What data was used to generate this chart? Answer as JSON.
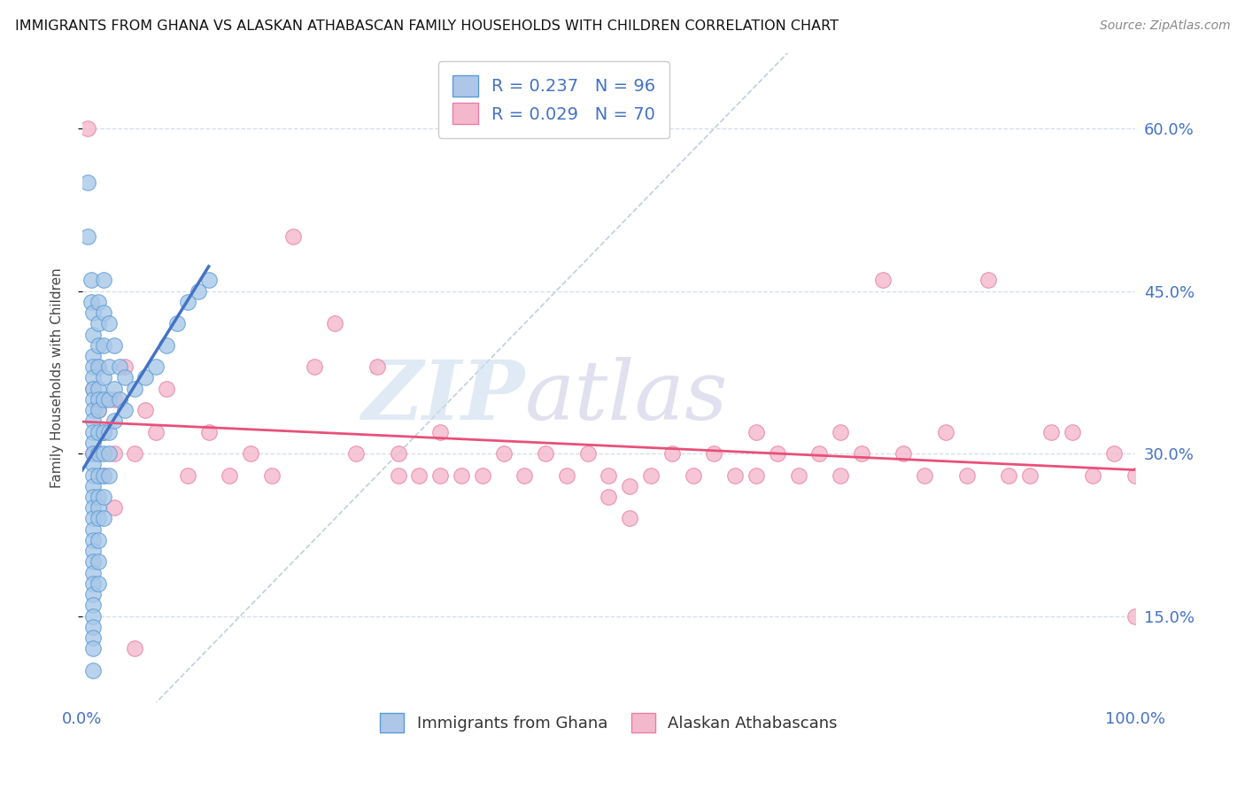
{
  "title": "IMMIGRANTS FROM GHANA VS ALASKAN ATHABASCAN FAMILY HOUSEHOLDS WITH CHILDREN CORRELATION CHART",
  "source": "Source: ZipAtlas.com",
  "ylabel": "Family Households with Children",
  "yticks_labels": [
    "15.0%",
    "30.0%",
    "45.0%",
    "60.0%"
  ],
  "ytick_vals": [
    0.15,
    0.3,
    0.45,
    0.6
  ],
  "xlim": [
    0.0,
    1.0
  ],
  "ylim": [
    0.07,
    0.67
  ],
  "ghana_color": "#a8c8e8",
  "ghana_edge": "#5b9bd5",
  "athabascan_color": "#f4b8cc",
  "athabascan_edge": "#e87fa0",
  "trend_ghana_color": "#4472c4",
  "trend_athabascan_color": "#e8507a",
  "diagonal_color": "#b0c4d8",
  "background_color": "#ffffff",
  "watermark_zip_color": "#dce8f4",
  "watermark_atlas_color": "#d4d0e8",
  "ghana_points": [
    [
      0.005,
      0.55
    ],
    [
      0.005,
      0.5
    ],
    [
      0.008,
      0.46
    ],
    [
      0.008,
      0.44
    ],
    [
      0.01,
      0.43
    ],
    [
      0.01,
      0.41
    ],
    [
      0.01,
      0.39
    ],
    [
      0.01,
      0.38
    ],
    [
      0.01,
      0.37
    ],
    [
      0.01,
      0.36
    ],
    [
      0.01,
      0.35
    ],
    [
      0.01,
      0.34
    ],
    [
      0.01,
      0.33
    ],
    [
      0.01,
      0.32
    ],
    [
      0.01,
      0.31
    ],
    [
      0.01,
      0.3
    ],
    [
      0.01,
      0.29
    ],
    [
      0.01,
      0.28
    ],
    [
      0.01,
      0.27
    ],
    [
      0.01,
      0.26
    ],
    [
      0.01,
      0.25
    ],
    [
      0.01,
      0.24
    ],
    [
      0.01,
      0.23
    ],
    [
      0.01,
      0.22
    ],
    [
      0.01,
      0.21
    ],
    [
      0.01,
      0.2
    ],
    [
      0.01,
      0.19
    ],
    [
      0.01,
      0.18
    ],
    [
      0.01,
      0.17
    ],
    [
      0.01,
      0.16
    ],
    [
      0.01,
      0.15
    ],
    [
      0.01,
      0.14
    ],
    [
      0.01,
      0.13
    ],
    [
      0.01,
      0.12
    ],
    [
      0.01,
      0.1
    ],
    [
      0.015,
      0.44
    ],
    [
      0.015,
      0.42
    ],
    [
      0.015,
      0.4
    ],
    [
      0.015,
      0.38
    ],
    [
      0.015,
      0.36
    ],
    [
      0.015,
      0.35
    ],
    [
      0.015,
      0.34
    ],
    [
      0.015,
      0.32
    ],
    [
      0.015,
      0.3
    ],
    [
      0.015,
      0.28
    ],
    [
      0.015,
      0.26
    ],
    [
      0.015,
      0.25
    ],
    [
      0.015,
      0.24
    ],
    [
      0.015,
      0.22
    ],
    [
      0.015,
      0.2
    ],
    [
      0.015,
      0.18
    ],
    [
      0.02,
      0.46
    ],
    [
      0.02,
      0.43
    ],
    [
      0.02,
      0.4
    ],
    [
      0.02,
      0.37
    ],
    [
      0.02,
      0.35
    ],
    [
      0.02,
      0.32
    ],
    [
      0.02,
      0.3
    ],
    [
      0.02,
      0.28
    ],
    [
      0.02,
      0.26
    ],
    [
      0.02,
      0.24
    ],
    [
      0.025,
      0.42
    ],
    [
      0.025,
      0.38
    ],
    [
      0.025,
      0.35
    ],
    [
      0.025,
      0.32
    ],
    [
      0.025,
      0.3
    ],
    [
      0.025,
      0.28
    ],
    [
      0.03,
      0.4
    ],
    [
      0.03,
      0.36
    ],
    [
      0.03,
      0.33
    ],
    [
      0.035,
      0.38
    ],
    [
      0.035,
      0.35
    ],
    [
      0.04,
      0.37
    ],
    [
      0.04,
      0.34
    ],
    [
      0.05,
      0.36
    ],
    [
      0.06,
      0.37
    ],
    [
      0.07,
      0.38
    ],
    [
      0.08,
      0.4
    ],
    [
      0.09,
      0.42
    ],
    [
      0.1,
      0.44
    ],
    [
      0.11,
      0.45
    ],
    [
      0.12,
      0.46
    ]
  ],
  "athabascan_points": [
    [
      0.005,
      0.6
    ],
    [
      0.01,
      0.36
    ],
    [
      0.01,
      0.3
    ],
    [
      0.015,
      0.38
    ],
    [
      0.015,
      0.34
    ],
    [
      0.02,
      0.32
    ],
    [
      0.02,
      0.28
    ],
    [
      0.03,
      0.35
    ],
    [
      0.03,
      0.3
    ],
    [
      0.03,
      0.25
    ],
    [
      0.04,
      0.38
    ],
    [
      0.05,
      0.3
    ],
    [
      0.05,
      0.12
    ],
    [
      0.06,
      0.34
    ],
    [
      0.07,
      0.32
    ],
    [
      0.08,
      0.36
    ],
    [
      0.1,
      0.28
    ],
    [
      0.12,
      0.32
    ],
    [
      0.14,
      0.28
    ],
    [
      0.16,
      0.3
    ],
    [
      0.18,
      0.28
    ],
    [
      0.2,
      0.5
    ],
    [
      0.22,
      0.38
    ],
    [
      0.24,
      0.42
    ],
    [
      0.26,
      0.3
    ],
    [
      0.28,
      0.38
    ],
    [
      0.3,
      0.28
    ],
    [
      0.3,
      0.3
    ],
    [
      0.32,
      0.28
    ],
    [
      0.34,
      0.32
    ],
    [
      0.34,
      0.28
    ],
    [
      0.36,
      0.28
    ],
    [
      0.38,
      0.28
    ],
    [
      0.4,
      0.3
    ],
    [
      0.42,
      0.28
    ],
    [
      0.44,
      0.3
    ],
    [
      0.46,
      0.28
    ],
    [
      0.48,
      0.3
    ],
    [
      0.5,
      0.28
    ],
    [
      0.5,
      0.26
    ],
    [
      0.52,
      0.27
    ],
    [
      0.52,
      0.24
    ],
    [
      0.54,
      0.28
    ],
    [
      0.56,
      0.3
    ],
    [
      0.58,
      0.28
    ],
    [
      0.6,
      0.3
    ],
    [
      0.62,
      0.28
    ],
    [
      0.64,
      0.32
    ],
    [
      0.64,
      0.28
    ],
    [
      0.66,
      0.3
    ],
    [
      0.68,
      0.28
    ],
    [
      0.7,
      0.3
    ],
    [
      0.72,
      0.32
    ],
    [
      0.72,
      0.28
    ],
    [
      0.74,
      0.3
    ],
    [
      0.76,
      0.46
    ],
    [
      0.78,
      0.3
    ],
    [
      0.8,
      0.28
    ],
    [
      0.82,
      0.32
    ],
    [
      0.84,
      0.28
    ],
    [
      0.86,
      0.46
    ],
    [
      0.88,
      0.28
    ],
    [
      0.9,
      0.28
    ],
    [
      0.92,
      0.32
    ],
    [
      0.94,
      0.32
    ],
    [
      0.96,
      0.28
    ],
    [
      0.98,
      0.3
    ],
    [
      1.0,
      0.15
    ],
    [
      1.0,
      0.28
    ]
  ]
}
